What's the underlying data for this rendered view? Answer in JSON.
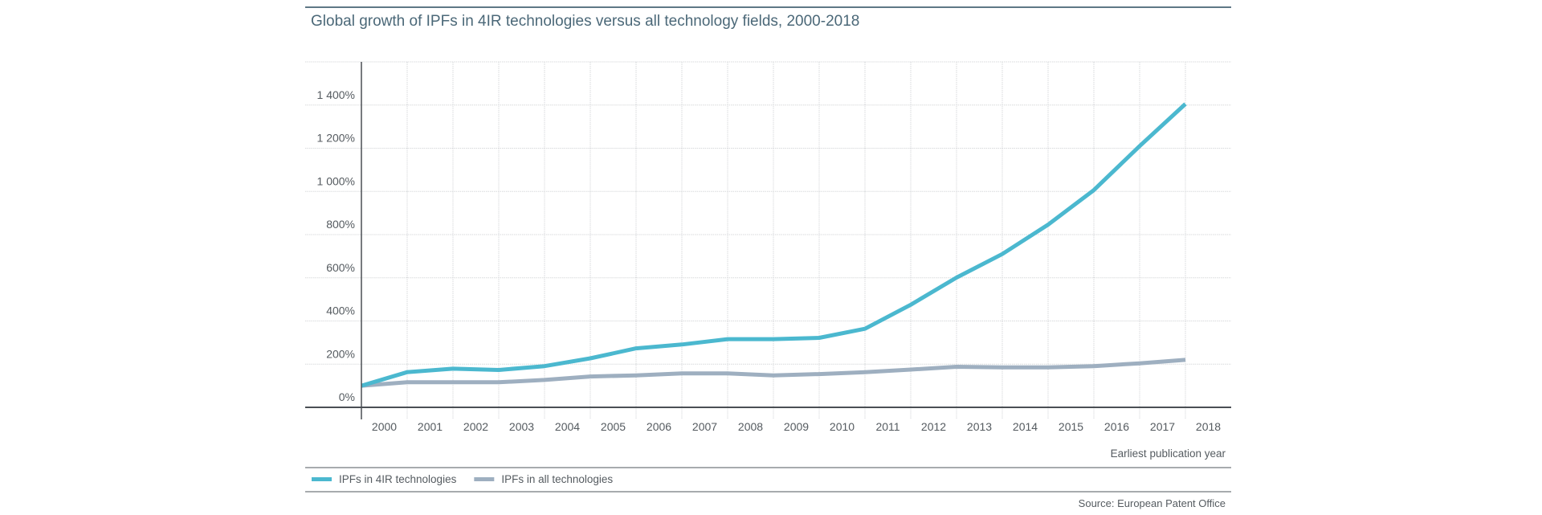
{
  "chart_data": {
    "type": "line",
    "title": "Global growth of IPFs in 4IR technologies versus all technology fields, 2000-2018",
    "xlabel": "Earliest publication year",
    "ylabel": "",
    "x": [
      "2000",
      "2001",
      "2002",
      "2003",
      "2004",
      "2005",
      "2006",
      "2007",
      "2008",
      "2009",
      "2010",
      "2011",
      "2012",
      "2013",
      "2014",
      "2015",
      "2016",
      "2017",
      "2018"
    ],
    "ylim": [
      0,
      1600
    ],
    "yticks": [
      0,
      200,
      400,
      600,
      800,
      1000,
      1200,
      1400
    ],
    "ytick_labels": [
      "0%",
      "200%",
      "400%",
      "600%",
      "800%",
      "1 000%",
      "1 200%",
      "1 400%"
    ],
    "grid": true,
    "legend_position": "bottom-left",
    "series": [
      {
        "name": "IPFs in 4IR technologies",
        "color": "#4bb8cf",
        "values": [
          100,
          163,
          179,
          173,
          191,
          227,
          273,
          291,
          316,
          316,
          322,
          364,
          475,
          601,
          710,
          846,
          1006,
          1210,
          1405
        ]
      },
      {
        "name": "IPFs in all technologies",
        "color": "#9eafc0",
        "values": [
          100,
          116,
          116,
          116,
          127,
          143,
          148,
          157,
          157,
          148,
          154,
          163,
          175,
          188,
          185,
          185,
          191,
          204,
          220
        ]
      }
    ],
    "source": "Source: European Patent Office"
  },
  "colors": {
    "rule": "#5f7886",
    "grid": "#d8dadc",
    "axis": "#4a4f54"
  }
}
